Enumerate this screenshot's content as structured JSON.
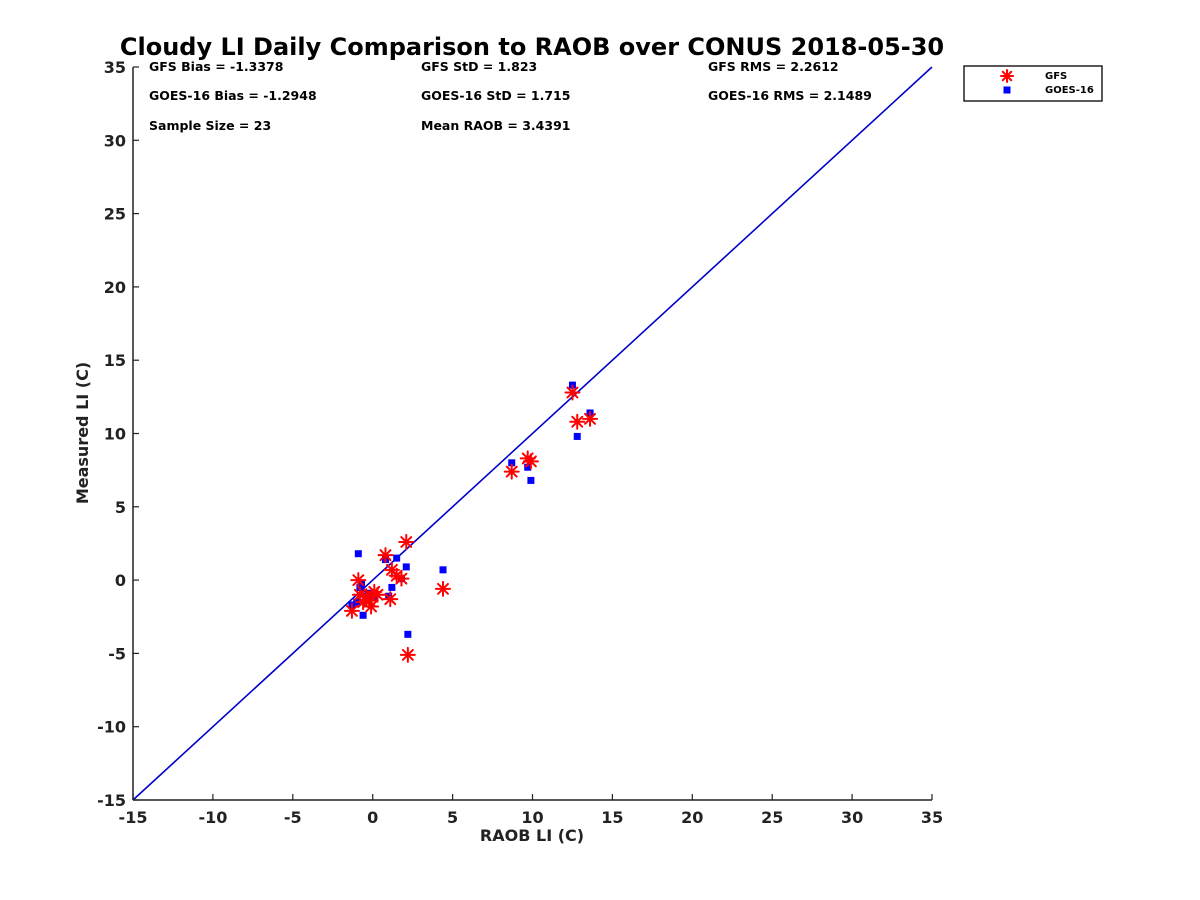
{
  "chart_data": {
    "type": "scatter",
    "title": "Cloudy LI Daily Comparison to RAOB over CONUS 2018-05-30",
    "xlabel": "RAOB LI (C)",
    "ylabel": "Measured LI (C)",
    "xlim": [
      -15,
      35
    ],
    "ylim": [
      -15,
      35
    ],
    "xticks": [
      -15,
      -10,
      -5,
      0,
      5,
      10,
      15,
      20,
      25,
      30,
      35
    ],
    "yticks": [
      -15,
      -10,
      -5,
      0,
      5,
      10,
      15,
      20,
      25,
      30,
      35
    ],
    "xtick_labels": [
      "-15",
      "-10",
      "-5",
      "0",
      "5",
      "10",
      "15",
      "20",
      "25",
      "30",
      "35"
    ],
    "ytick_labels": [
      "-15",
      "-10",
      "-5",
      "0",
      "5",
      "10",
      "15",
      "20",
      "25",
      "30",
      "35"
    ],
    "reference_line": {
      "from": [
        -15,
        -15
      ],
      "to": [
        35,
        35
      ],
      "color": "#0000cc"
    },
    "stats": [
      "GFS Bias = -1.3378",
      "GFS StD = 1.823",
      "GFS RMS = 2.2612",
      "GOES-16 Bias = -1.2948",
      "GOES-16 StD = 1.715",
      "GOES-16 RMS = 2.1489",
      "Sample Size = 23",
      "Mean RAOB = 3.4391"
    ],
    "legend": {
      "position": "outside top-right",
      "entries": [
        "GFS",
        "GOES-16"
      ]
    },
    "series": [
      {
        "name": "GFS",
        "marker": "asterisk",
        "color": "#ff0000",
        "x": [
          -1.3,
          -0.9,
          -0.8,
          -0.6,
          -0.4,
          -0.1,
          0.1,
          0.3,
          0.8,
          1.1,
          1.2,
          1.5,
          1.8,
          2.1,
          2.2,
          4.4,
          8.7,
          9.7,
          9.9,
          12.5,
          12.8,
          13.6,
          -0.2
        ],
        "y": [
          -2.1,
          0.0,
          -1.0,
          -1.5,
          -1.1,
          -1.8,
          -0.8,
          -1.0,
          1.7,
          -1.3,
          0.7,
          0.3,
          0.1,
          2.6,
          -5.1,
          -0.6,
          7.4,
          8.3,
          8.1,
          12.8,
          10.8,
          11.0,
          -1.4
        ]
      },
      {
        "name": "GOES-16",
        "marker": "square",
        "color": "#0000ff",
        "x": [
          -1.3,
          -1.0,
          -0.9,
          -0.7,
          -0.6,
          -0.3,
          -0.1,
          0.1,
          0.8,
          1.0,
          1.2,
          1.5,
          1.8,
          2.1,
          2.2,
          4.4,
          8.7,
          9.7,
          9.9,
          12.5,
          12.8,
          13.6,
          -0.8
        ],
        "y": [
          -1.7,
          -1.5,
          1.8,
          -0.3,
          -2.4,
          -0.9,
          -1.2,
          -1.1,
          1.4,
          -1.1,
          -0.5,
          1.5,
          0.1,
          0.9,
          -3.7,
          0.7,
          8.0,
          7.7,
          6.8,
          13.3,
          9.8,
          11.4,
          -0.5
        ]
      }
    ]
  }
}
